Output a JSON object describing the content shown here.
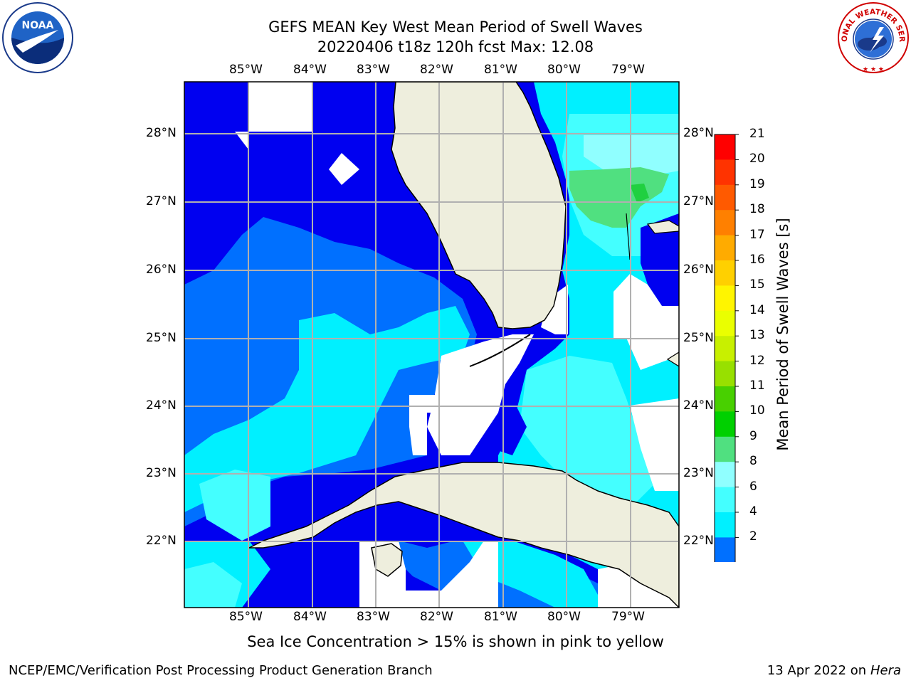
{
  "header": {
    "title_line1": "GEFS MEAN Key West Mean Period of Swell Waves",
    "title_line2": "20220406 t18z 120h fcst   Max: 12.08"
  },
  "logos": {
    "noaa_text": "NOAA",
    "nws_text": "NATIONAL WEATHER SERVICE"
  },
  "map": {
    "lon_labels": [
      "85°W",
      "84°W",
      "83°W",
      "82°W",
      "81°W",
      "80°W",
      "79°W"
    ],
    "lat_labels": [
      "28°N",
      "27°N",
      "26°N",
      "25°N",
      "24°N",
      "23°N",
      "22°N"
    ]
  },
  "colorbar": {
    "title": "Mean Period of Swell Waves [s]",
    "ticks": [
      "21",
      "20",
      "19",
      "18",
      "17",
      "16",
      "15",
      "14",
      "13",
      "12",
      "11",
      "10",
      "9",
      "8",
      "6",
      "4",
      "2"
    ],
    "colors": [
      "#ff0000",
      "#ff3300",
      "#ff5a00",
      "#ff8000",
      "#ffab00",
      "#ffd000",
      "#fff500",
      "#eaff00",
      "#c8f000",
      "#98e000",
      "#48d000",
      "#00d000",
      "#50e080",
      "#90ffff",
      "#44ffff",
      "#00f0ff",
      "#0070ff"
    ],
    "extend_color": "#0000f0"
  },
  "palette": {
    "deep_blue": "#0000f0",
    "mid_blue": "#0070ff",
    "cyan": "#00f0ff",
    "light_cyan": "#44ffff",
    "pale_cyan": "#90ffff",
    "green": "#50e080",
    "land": "#eeeedd",
    "grid": "#b0b0b0"
  },
  "footer": {
    "ice_note": "Sea Ice Concentration > 15% is shown in pink to yellow",
    "credit": "NCEP/EMC/Verification Post Processing Product Generation Branch",
    "date": "13 Apr 2022 on ",
    "machine": "Hera"
  }
}
